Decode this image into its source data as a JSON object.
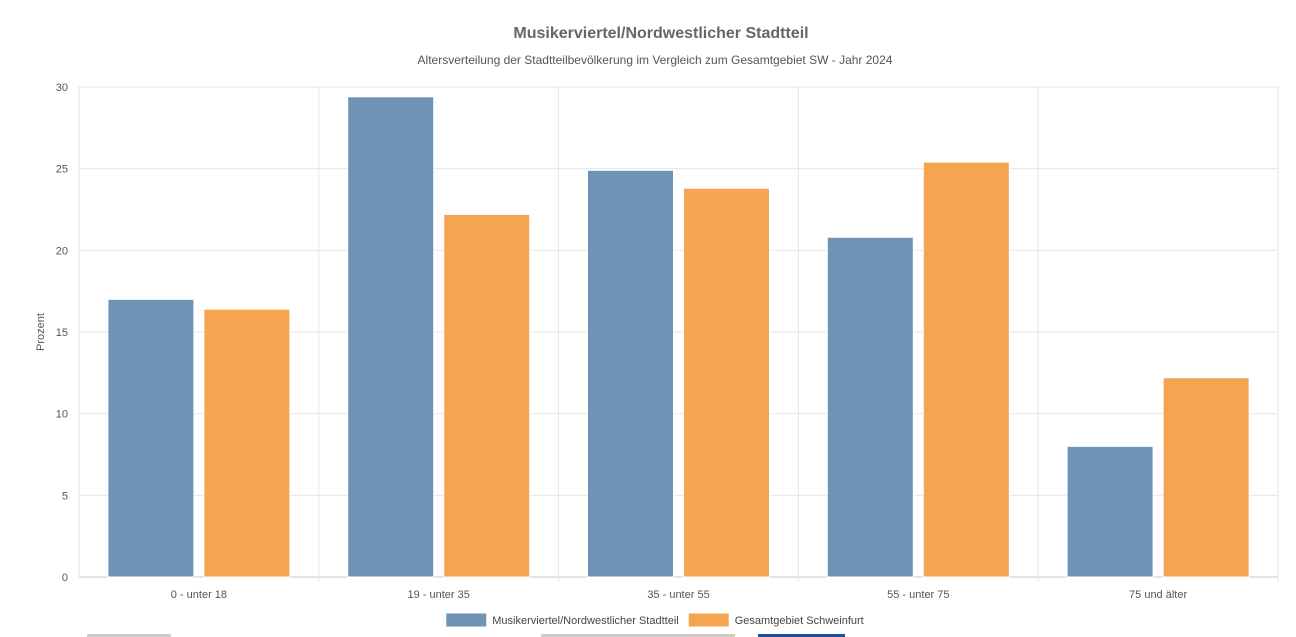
{
  "chart_data": {
    "type": "bar",
    "title": "Musikerviertel/Nordwestlicher Stadtteil",
    "subtitle": "Altersverteilung der Stadtteilbevölkerung im Vergleich zum Gesamtgebiet SW - Jahr 2024",
    "ylabel": "Prozent",
    "xlabel": "",
    "ylim": [
      0,
      30
    ],
    "yticks": [
      0,
      5,
      10,
      15,
      20,
      25,
      30
    ],
    "grid": true,
    "legend_position": "bottom",
    "categories": [
      "0 - unter 18",
      "19 - unter 35",
      "35 - unter 55",
      "55 - unter 75",
      "75 und älter"
    ],
    "series": [
      {
        "name": "Musikerviertel/Nordwestlicher Stadtteil",
        "color": "#6e93b7",
        "values": [
          17.0,
          29.4,
          24.9,
          20.8,
          8.0
        ]
      },
      {
        "name": "Gesamtgebiet Schweinfurt",
        "color": "#f5a452",
        "values": [
          16.4,
          22.2,
          23.8,
          25.4,
          12.2
        ]
      }
    ]
  },
  "colors": {
    "control_strip_gray": "#cccccc",
    "control_strip_blue": "#1f4fa3"
  }
}
